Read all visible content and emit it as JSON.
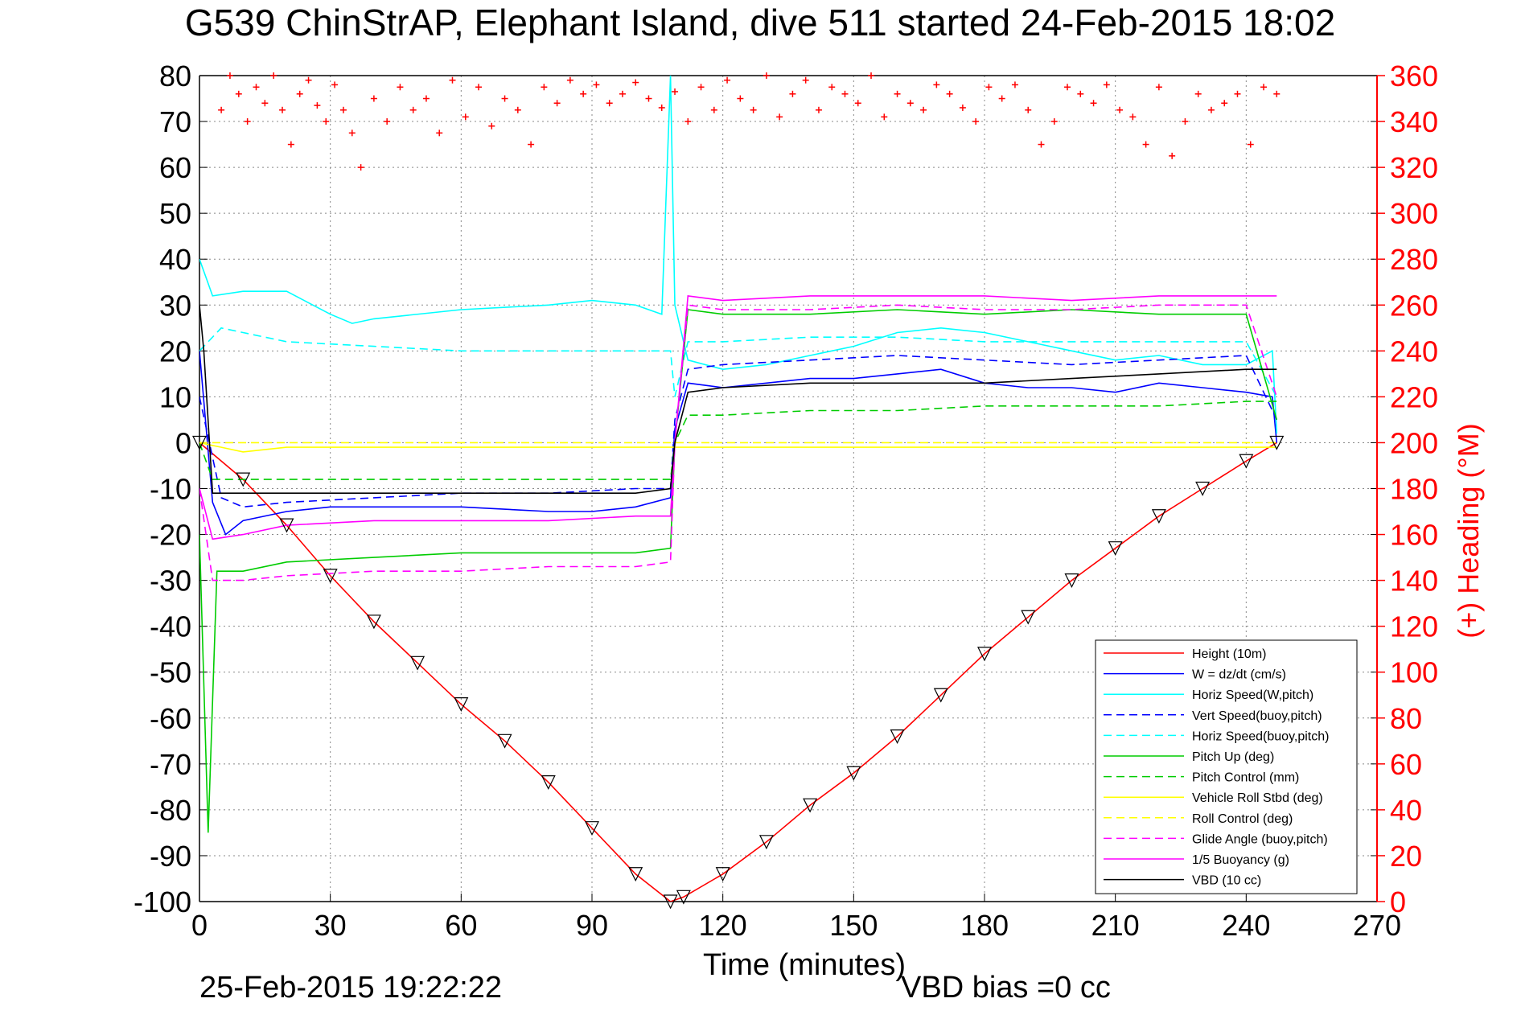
{
  "chart_data": {
    "type": "line",
    "title": "G539 ChinStrAP, Elephant Island, dive 511 started 24-Feb-2015 18:02",
    "xlabel": "Time (minutes)",
    "ylabel": "",
    "y2label": "(+) Heading (°M)",
    "footer_left": "25-Feb-2015 19:22:22",
    "footer_right": "VBD bias =0 cc",
    "xlim": [
      0,
      270
    ],
    "ylim": [
      -100,
      80
    ],
    "y2lim": [
      0,
      360
    ],
    "grid": true,
    "legend_position": "bottom-right",
    "x_ticks": [
      "0",
      "30",
      "60",
      "90",
      "120",
      "150",
      "180",
      "210",
      "240",
      "270"
    ],
    "y_ticks": [
      "80",
      "70",
      "60",
      "50",
      "40",
      "30",
      "20",
      "10",
      "0",
      "-10",
      "-20",
      "-30",
      "-40",
      "-50",
      "-60",
      "-70",
      "-80",
      "-90",
      "-100"
    ],
    "y2_ticks": [
      "360",
      "340",
      "320",
      "300",
      "280",
      "260",
      "240",
      "220",
      "200",
      "180",
      "160",
      "140",
      "120",
      "100",
      "80",
      "60",
      "40",
      "20",
      "0"
    ],
    "colors": {
      "red": "#ff0000",
      "blue": "#0000ff",
      "cyan": "#00ffff",
      "green": "#00cc00",
      "yellow": "#ffff00",
      "magenta": "#ff00ff",
      "black": "#000000"
    },
    "series": [
      {
        "name": "Height (10m)",
        "color": "#ff0000",
        "style": "solid",
        "x": [
          0,
          10,
          20,
          30,
          40,
          50,
          60,
          70,
          80,
          90,
          100,
          108,
          111,
          120,
          130,
          140,
          150,
          160,
          170,
          180,
          190,
          200,
          210,
          220,
          230,
          240,
          247
        ],
        "y": [
          0,
          -8,
          -18,
          -29,
          -39,
          -48,
          -57,
          -65,
          -74,
          -84,
          -94,
          -100,
          -99,
          -94,
          -87,
          -79,
          -72,
          -64,
          -55,
          -46,
          -38,
          -30,
          -23,
          -16,
          -10,
          -4,
          0
        ]
      },
      {
        "name": "W = dz/dt (cm/s)",
        "color": "#0000ff",
        "style": "solid",
        "x": [
          0,
          3,
          6,
          10,
          20,
          30,
          40,
          60,
          80,
          90,
          100,
          108,
          109,
          112,
          120,
          130,
          140,
          150,
          160,
          170,
          180,
          190,
          200,
          210,
          220,
          230,
          240,
          246,
          247
        ],
        "y": [
          20,
          -13,
          -20,
          -17,
          -15,
          -14,
          -14,
          -14,
          -15,
          -15,
          -14,
          -12,
          3,
          13,
          12,
          13,
          14,
          14,
          15,
          16,
          13,
          12,
          12,
          11,
          13,
          12,
          11,
          10,
          0
        ]
      },
      {
        "name": "Horiz Speed(W,pitch)",
        "color": "#00ffff",
        "style": "solid",
        "x": [
          0,
          3,
          10,
          20,
          30,
          35,
          40,
          60,
          80,
          90,
          100,
          106,
          108,
          109,
          112,
          120,
          130,
          140,
          150,
          160,
          170,
          180,
          190,
          200,
          210,
          220,
          230,
          240,
          246,
          247
        ],
        "y": [
          40,
          32,
          33,
          33,
          28,
          26,
          27,
          29,
          30,
          31,
          30,
          28,
          80,
          30,
          18,
          16,
          17,
          19,
          21,
          24,
          25,
          24,
          22,
          20,
          18,
          19,
          17,
          17,
          20,
          2
        ]
      },
      {
        "name": "Vert Speed(buoy,pitch)",
        "color": "#0000ff",
        "style": "dashed",
        "x": [
          0,
          5,
          10,
          20,
          40,
          60,
          80,
          100,
          108,
          109,
          112,
          120,
          140,
          160,
          180,
          200,
          220,
          240,
          247
        ],
        "y": [
          10,
          -12,
          -14,
          -13,
          -12,
          -11,
          -11,
          -10,
          -10,
          5,
          16,
          17,
          18,
          19,
          18,
          17,
          18,
          19,
          5
        ]
      },
      {
        "name": "Horiz Speed(buoy,pitch)",
        "color": "#00ffff",
        "style": "dashed",
        "x": [
          0,
          5,
          10,
          20,
          40,
          60,
          80,
          100,
          108,
          109,
          112,
          120,
          140,
          160,
          180,
          200,
          220,
          240,
          247
        ],
        "y": [
          20,
          25,
          24,
          22,
          21,
          20,
          20,
          20,
          20,
          10,
          22,
          22,
          23,
          23,
          22,
          22,
          22,
          22,
          10
        ]
      },
      {
        "name": "Pitch Up (deg)",
        "color": "#00cc00",
        "style": "solid",
        "x": [
          0,
          2,
          4,
          6,
          10,
          20,
          40,
          60,
          80,
          100,
          108,
          109,
          112,
          120,
          140,
          160,
          180,
          200,
          220,
          240,
          247
        ],
        "y": [
          -20,
          -85,
          -28,
          -28,
          -28,
          -26,
          -25,
          -24,
          -24,
          -24,
          -23,
          0,
          29,
          28,
          28,
          29,
          28,
          29,
          28,
          28,
          5
        ]
      },
      {
        "name": "Pitch Control (mm)",
        "color": "#00cc00",
        "style": "dashed",
        "x": [
          0,
          3,
          10,
          20,
          40,
          60,
          80,
          100,
          108,
          109,
          112,
          120,
          140,
          160,
          180,
          200,
          220,
          240,
          247
        ],
        "y": [
          0,
          -8,
          -8,
          -8,
          -8,
          -8,
          -8,
          -8,
          -8,
          0,
          6,
          6,
          7,
          7,
          8,
          8,
          8,
          9,
          9
        ]
      },
      {
        "name": "Vehicle Roll Stbd (deg)",
        "color": "#ffff00",
        "style": "solid",
        "x": [
          0,
          5,
          10,
          20,
          40,
          60,
          80,
          100,
          108,
          120,
          140,
          160,
          180,
          200,
          220,
          240,
          247
        ],
        "y": [
          0,
          -1,
          -2,
          -1,
          -1,
          -1,
          -1,
          -1,
          -1,
          -1,
          -1,
          -1,
          -1,
          -1,
          -1,
          -1,
          -1
        ]
      },
      {
        "name": "Roll Control (deg)",
        "color": "#ffff00",
        "style": "dashed",
        "x": [
          0,
          10,
          20,
          40,
          60,
          80,
          100,
          108,
          120,
          140,
          160,
          180,
          200,
          220,
          240,
          247
        ],
        "y": [
          0,
          0,
          0,
          0,
          0,
          0,
          0,
          0,
          0,
          0,
          0,
          0,
          0,
          0,
          0,
          0
        ]
      },
      {
        "name": "Glide Angle (buoy,pitch)",
        "color": "#ff00ff",
        "style": "dashed",
        "x": [
          0,
          3,
          10,
          20,
          40,
          60,
          80,
          100,
          108,
          109,
          112,
          120,
          140,
          160,
          180,
          200,
          220,
          240,
          247
        ],
        "y": [
          -10,
          -30,
          -30,
          -29,
          -28,
          -28,
          -27,
          -27,
          -26,
          0,
          30,
          29,
          29,
          30,
          29,
          29,
          30,
          30,
          10
        ]
      },
      {
        "name": "1/5 Buoyancy (g)",
        "color": "#ff00ff",
        "style": "solid",
        "x": [
          0,
          3,
          10,
          20,
          40,
          60,
          80,
          100,
          108,
          109,
          112,
          120,
          140,
          160,
          180,
          200,
          220,
          240,
          247
        ],
        "y": [
          -10,
          -21,
          -20,
          -18,
          -17,
          -17,
          -17,
          -16,
          -16,
          0,
          32,
          31,
          32,
          32,
          32,
          31,
          32,
          32,
          32
        ]
      },
      {
        "name": "VBD (10 cc)",
        "color": "#000000",
        "style": "solid",
        "x": [
          0,
          1,
          3,
          10,
          20,
          40,
          60,
          80,
          100,
          108,
          109,
          112,
          120,
          140,
          160,
          180,
          200,
          220,
          240,
          247
        ],
        "y": [
          30,
          20,
          -11,
          -11,
          -11,
          -11,
          -11,
          -11,
          -11,
          -10,
          0,
          11,
          12,
          13,
          13,
          13,
          14,
          15,
          16,
          16
        ]
      }
    ],
    "heading_points_deg": {
      "name": "(+) Heading",
      "color": "#ff0000",
      "x": [
        5,
        7,
        9,
        11,
        13,
        15,
        17,
        19,
        21,
        23,
        25,
        27,
        29,
        31,
        33,
        35,
        37,
        40,
        43,
        46,
        49,
        52,
        55,
        58,
        61,
        64,
        67,
        70,
        73,
        76,
        79,
        82,
        85,
        88,
        91,
        94,
        97,
        100,
        103,
        106,
        109,
        112,
        115,
        118,
        121,
        124,
        127,
        130,
        133,
        136,
        139,
        142,
        145,
        148,
        151,
        154,
        157,
        160,
        163,
        166,
        169,
        172,
        175,
        178,
        181,
        184,
        187,
        190,
        193,
        196,
        199,
        202,
        205,
        208,
        211,
        214,
        217,
        220,
        223,
        226,
        229,
        232,
        235,
        238,
        241,
        244,
        247
      ],
      "y": [
        345,
        360,
        352,
        340,
        355,
        348,
        360,
        345,
        330,
        352,
        358,
        347,
        340,
        356,
        345,
        335,
        320,
        350,
        340,
        355,
        345,
        350,
        335,
        358,
        342,
        355,
        338,
        350,
        345,
        330,
        355,
        348,
        358,
        352,
        356,
        348,
        352,
        357,
        350,
        346,
        353,
        340,
        355,
        345,
        358,
        350,
        345,
        360,
        342,
        352,
        358,
        345,
        355,
        352,
        348,
        360,
        342,
        352,
        348,
        345,
        356,
        352,
        346,
        340,
        355,
        350,
        356,
        345,
        330,
        340,
        355,
        352,
        348,
        356,
        345,
        342,
        330,
        355,
        325,
        340,
        352,
        345,
        348,
        352,
        330,
        355,
        352
      ]
    },
    "legend": [
      "Height (10m)",
      "W = dz/dt (cm/s)",
      "Horiz Speed(W,pitch)",
      "Vert Speed(buoy,pitch)",
      "Horiz Speed(buoy,pitch)",
      "Pitch Up (deg)",
      "Pitch Control (mm)",
      "Vehicle Roll Stbd (deg)",
      "Roll Control (deg)",
      "Glide Angle (buoy,pitch)",
      "1/5 Buoyancy (g)",
      "VBD (10 cc)"
    ]
  }
}
